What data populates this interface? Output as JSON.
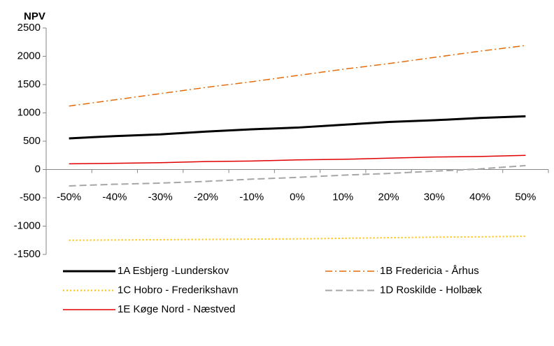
{
  "chart_data": {
    "type": "line",
    "y_label": "NPV",
    "categories": [
      "-50%",
      "-40%",
      "-30%",
      "-20%",
      "-10%",
      "0%",
      "10%",
      "20%",
      "30%",
      "40%",
      "50%"
    ],
    "series": [
      {
        "name": "1A Esbjerg -Lunderskov",
        "color": "#000000",
        "width": 3,
        "dash": "none",
        "values": [
          550,
          590,
          620,
          670,
          710,
          740,
          790,
          840,
          870,
          910,
          940
        ]
      },
      {
        "name": "1B Fredericia - Århus",
        "color": "#e46c0a",
        "width": 1.5,
        "dash": "10 4 2 4",
        "values": [
          1120,
          1230,
          1340,
          1450,
          1550,
          1660,
          1770,
          1870,
          1980,
          2090,
          2190
        ]
      },
      {
        "name": "1C Hobro - Frederikshavn",
        "color": "#ffc000",
        "width": 2,
        "dash": "2 3",
        "values": [
          -1250,
          -1245,
          -1240,
          -1235,
          -1230,
          -1225,
          -1215,
          -1205,
          -1195,
          -1190,
          -1180
        ]
      },
      {
        "name": "1D Roskilde - Holbæk",
        "color": "#a6a6a6",
        "width": 2,
        "dash": "10 5",
        "values": [
          -290,
          -260,
          -240,
          -210,
          -170,
          -140,
          -100,
          -70,
          -30,
          10,
          70
        ]
      },
      {
        "name": "1E Køge Nord - Næstved",
        "color": "#e00000",
        "width": 1.5,
        "dash": "none",
        "values": [
          100,
          110,
          120,
          140,
          150,
          170,
          180,
          200,
          220,
          230,
          250
        ]
      }
    ],
    "ylim": [
      -1500,
      2500
    ],
    "yticks": [
      -1500,
      -1000,
      -500,
      0,
      500,
      1000,
      1500,
      2000,
      2500
    ],
    "grid": false
  }
}
